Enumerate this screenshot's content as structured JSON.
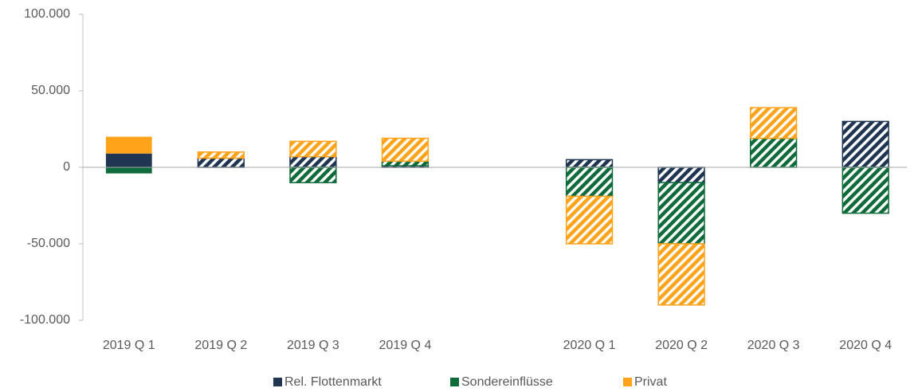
{
  "chart_data": {
    "type": "bar",
    "stacked": true,
    "categories": [
      "2019 Q 1",
      "2019 Q 2",
      "2019 Q 3",
      "2019 Q 4",
      null,
      "2020 Q 1",
      "2020 Q 2",
      "2020 Q 3",
      "2020 Q 4"
    ],
    "hatched": [
      false,
      true,
      true,
      true,
      false,
      true,
      true,
      true,
      true
    ],
    "series": [
      {
        "name": "Rel. Flottenmarkt",
        "color": "#1f3552",
        "values": [
          9000,
          6000,
          7000,
          1000,
          null,
          5000,
          -10000,
          0,
          30000
        ]
      },
      {
        "name": "Sondereinflüsse",
        "color": "#0f6b3a",
        "values": [
          -4000,
          0,
          -10000,
          3000,
          null,
          -19000,
          -40000,
          19000,
          -30000
        ]
      },
      {
        "name": "Privat",
        "color": "#ffa31a",
        "values": [
          11000,
          4000,
          10000,
          15000,
          null,
          -31000,
          -40000,
          20000,
          0
        ]
      }
    ],
    "ylim": [
      -100000,
      100000
    ],
    "yticks": [
      {
        "value": -100000,
        "label": "-100.000"
      },
      {
        "value": -50000,
        "label": "-50.000"
      },
      0,
      {
        "value": 50000,
        "label": "50.000"
      },
      {
        "value": 100000,
        "label": "100.000"
      }
    ],
    "grid": false,
    "legend": "bottom"
  }
}
